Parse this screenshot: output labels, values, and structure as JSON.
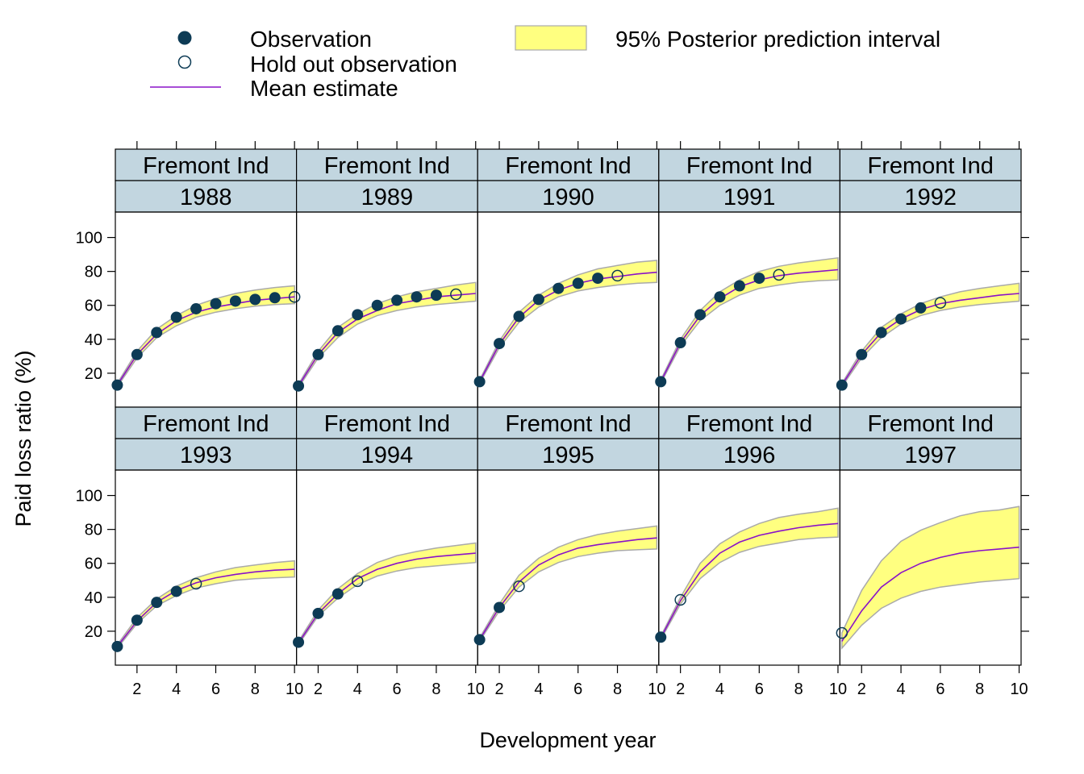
{
  "legend": {
    "observation": "Observation",
    "holdout": "Hold out observation",
    "mean": "Mean estimate",
    "interval": "95% Posterior prediction interval"
  },
  "colors": {
    "observation": "#0d3b55",
    "mean": "#8a12c8",
    "band_fill": "#ffff80",
    "band_stroke": "#aaaaaa",
    "strip_fill": "#c2d6e0"
  },
  "chart_data": {
    "type": "line",
    "xlabel": "Development year",
    "ylabel": "Paid loss ratio (%)",
    "xlim": [
      0.9,
      10.1
    ],
    "ylim": [
      0,
      115
    ],
    "xticks": [
      2,
      4,
      6,
      8,
      10
    ],
    "yticks": [
      20,
      40,
      60,
      80,
      100
    ],
    "company": "Fremont Ind",
    "panels": [
      {
        "year": "1988",
        "mean": [
          13,
          31,
          43,
          51,
          56,
          59,
          61,
          63,
          64,
          65
        ],
        "lower": [
          12,
          29,
          41,
          48,
          53,
          56,
          58,
          59.5,
          60.5,
          61
        ],
        "upper": [
          14,
          33,
          46,
          54,
          60,
          64,
          67,
          69,
          70.5,
          71.5
        ],
        "obs_x": [
          1,
          2,
          3,
          4,
          5,
          6,
          7,
          8,
          9
        ],
        "obs_y": [
          13,
          31,
          44,
          53,
          58,
          61,
          62.5,
          63.5,
          64.5
        ],
        "hold_x": [
          10
        ],
        "hold_y": [
          65
        ]
      },
      {
        "year": "1989",
        "mean": [
          12.5,
          31,
          44,
          52,
          57,
          61,
          63,
          65,
          66,
          67
        ],
        "lower": [
          11.5,
          29,
          41,
          49,
          54,
          57,
          59,
          60.5,
          61.5,
          62.5
        ],
        "upper": [
          13.5,
          33,
          47,
          55,
          61,
          65,
          68,
          70,
          72,
          73.5
        ],
        "obs_x": [
          1,
          2,
          3,
          4,
          5,
          6,
          7,
          8
        ],
        "obs_y": [
          12.5,
          31,
          45,
          54.5,
          60,
          63,
          65,
          66
        ],
        "hold_x": [
          9
        ],
        "hold_y": [
          66.5
        ]
      },
      {
        "year": "1990",
        "mean": [
          15,
          37,
          53,
          63,
          69,
          73,
          75.5,
          77,
          78.5,
          79.5
        ],
        "lower": [
          14,
          35,
          50,
          59,
          65,
          68.5,
          70.5,
          72,
          73,
          73.5
        ],
        "upper": [
          16,
          39,
          56,
          66,
          73,
          78,
          81.5,
          83.5,
          85.5,
          86.5
        ],
        "obs_x": [
          1,
          2,
          3,
          4,
          5,
          6,
          7
        ],
        "obs_y": [
          15,
          37.5,
          53.5,
          63.5,
          70,
          73,
          76
        ],
        "hold_x": [
          8
        ],
        "hold_y": [
          77.5
        ]
      },
      {
        "year": "1991",
        "mean": [
          15,
          38,
          54,
          64,
          71,
          75,
          77.5,
          79,
          80,
          81
        ],
        "lower": [
          14,
          36,
          51,
          60,
          66,
          70,
          72,
          73.5,
          74.5,
          75
        ],
        "upper": [
          16,
          40,
          57,
          68,
          75,
          80,
          83,
          85,
          86.5,
          88
        ],
        "obs_x": [
          1,
          2,
          3,
          4,
          5,
          6
        ],
        "obs_y": [
          15,
          38,
          54.5,
          65,
          71.5,
          76
        ],
        "hold_x": [
          7
        ],
        "hold_y": [
          78
        ]
      },
      {
        "year": "1992",
        "mean": [
          13,
          31,
          44,
          52,
          57.5,
          61,
          63,
          64.5,
          66,
          67
        ],
        "lower": [
          12,
          29,
          41,
          49,
          54,
          57,
          59,
          60.5,
          61.5,
          62.5
        ],
        "upper": [
          14,
          33,
          47,
          55,
          61,
          65,
          68,
          70,
          71.5,
          73
        ],
        "obs_x": [
          1,
          2,
          3,
          4,
          5
        ],
        "obs_y": [
          13,
          31,
          44,
          52,
          58.5
        ],
        "hold_x": [
          6
        ],
        "hold_y": [
          61.5
        ]
      },
      {
        "year": "1993",
        "mean": [
          11,
          26,
          37,
          44,
          48.5,
          51.5,
          53.5,
          55,
          56,
          56.5
        ],
        "lower": [
          10,
          24.5,
          35,
          41,
          45.5,
          48,
          50,
          51,
          51.5,
          52
        ],
        "upper": [
          12,
          28,
          39,
          46.5,
          51.5,
          55,
          57.5,
          59,
          60.5,
          61.5
        ],
        "obs_x": [
          1,
          2,
          3,
          4
        ],
        "obs_y": [
          11,
          26.5,
          37,
          43.5
        ],
        "hold_x": [
          5
        ],
        "hold_y": [
          48
        ]
      },
      {
        "year": "1994",
        "mean": [
          13,
          30.5,
          42,
          51,
          56.5,
          60,
          62.5,
          64,
          65,
          66
        ],
        "lower": [
          12,
          29,
          39.5,
          47.5,
          52.5,
          55.5,
          57.5,
          58.5,
          59.5,
          60.5
        ],
        "upper": [
          14,
          32.5,
          45,
          54,
          60.5,
          64.5,
          67,
          69,
          70.5,
          72
        ],
        "obs_x": [
          1,
          2,
          3
        ],
        "obs_y": [
          13.5,
          30.5,
          42
        ],
        "hold_x": [
          4
        ],
        "hold_y": [
          49.5
        ]
      },
      {
        "year": "1995",
        "mean": [
          15,
          34,
          49,
          59,
          65,
          69,
          71,
          72.5,
          74,
          75
        ],
        "lower": [
          14,
          32,
          46,
          55,
          60.5,
          64,
          66,
          67.5,
          68,
          68.5
        ],
        "upper": [
          16,
          36,
          53,
          63,
          69.5,
          74,
          77,
          79,
          80.5,
          82
        ],
        "obs_x": [
          1,
          2
        ],
        "obs_y": [
          15,
          34
        ],
        "hold_x": [
          3
        ],
        "hold_y": [
          46.5
        ]
      },
      {
        "year": "1996",
        "mean": [
          16,
          38,
          55,
          66,
          72.5,
          76.5,
          79,
          81,
          82.5,
          83.5
        ],
        "lower": [
          15,
          36,
          51,
          60.5,
          66.5,
          70,
          72,
          74,
          75,
          75.5
        ],
        "upper": [
          17,
          40,
          60,
          71.5,
          78.5,
          83.5,
          87,
          89,
          90.5,
          92.5
        ],
        "obs_x": [
          1
        ],
        "obs_y": [
          16.5
        ],
        "hold_x": [
          2
        ],
        "hold_y": [
          38.5
        ]
      },
      {
        "year": "1997",
        "mean": [
          14,
          32,
          46,
          54.5,
          60,
          63.5,
          66,
          67.5,
          68.5,
          69.5
        ],
        "lower": [
          10,
          23.5,
          33.5,
          39.5,
          43.5,
          46,
          47.5,
          49,
          50,
          51
        ],
        "upper": [
          19,
          44,
          61.5,
          73,
          79.5,
          84,
          88,
          90.5,
          91.5,
          93.5
        ],
        "obs_x": [],
        "obs_y": [],
        "hold_x": [
          1
        ],
        "hold_y": [
          19
        ]
      }
    ]
  }
}
